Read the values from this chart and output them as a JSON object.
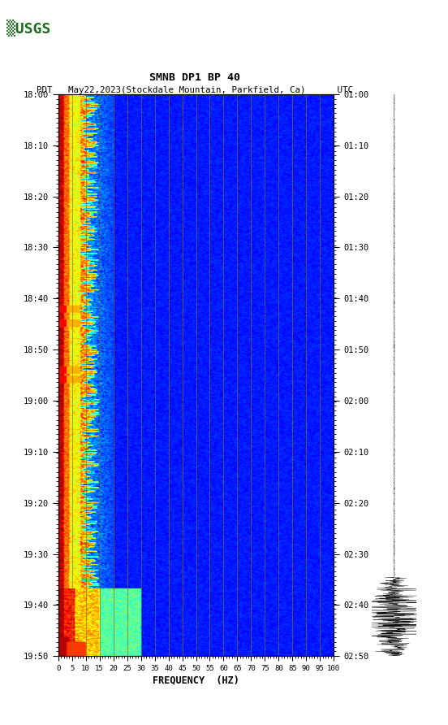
{
  "title_line1": "SMNB DP1 BP 40",
  "title_line2": "PDT   May22,2023(Stockdale Mountain, Parkfield, Ca)      UTC",
  "xlabel": "FREQUENCY  (HZ)",
  "yticks_left": [
    "18:00",
    "18:10",
    "18:20",
    "18:30",
    "18:40",
    "18:50",
    "19:00",
    "19:10",
    "19:20",
    "19:30",
    "19:40",
    "19:50"
  ],
  "yticks_right": [
    "01:00",
    "01:10",
    "01:20",
    "01:30",
    "01:40",
    "01:50",
    "02:00",
    "02:10",
    "02:20",
    "02:30",
    "02:40",
    "02:50"
  ],
  "xticks": [
    0,
    5,
    10,
    15,
    20,
    25,
    30,
    35,
    40,
    45,
    50,
    55,
    60,
    65,
    70,
    75,
    80,
    85,
    90,
    95,
    100
  ],
  "freq_lines": [
    5,
    10,
    15,
    20,
    25,
    30,
    35,
    40,
    45,
    50,
    55,
    60,
    65,
    70,
    75,
    80,
    85,
    90,
    95
  ],
  "fig_width": 5.52,
  "fig_height": 8.92,
  "background_color": "#ffffff",
  "colormap": "jet",
  "line_color": "#8B6914",
  "line_alpha": 0.8,
  "line_width": 0.6
}
